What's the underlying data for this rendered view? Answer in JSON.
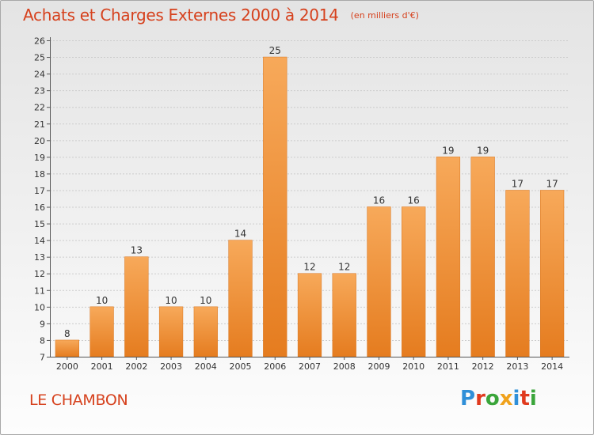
{
  "title": "Achats et Charges Externes 2000 à 2014",
  "unit_note": "(en milliers d'€)",
  "location": "LE CHAMBON",
  "logo": {
    "text": "Proxiti",
    "letter_colors": [
      "#2f8fd8",
      "#e03a1e",
      "#3aa53a",
      "#f0a21c",
      "#2f8fd8",
      "#e03a1e",
      "#3aa53a"
    ]
  },
  "colors": {
    "bar_light": "#f7a95a",
    "bar_dark": "#e57c1f",
    "axis": "#555555",
    "grid": "#cccccc",
    "title": "#d6411d"
  },
  "chart_data": {
    "type": "bar",
    "title": "Achats et Charges Externes 2000 à 2014",
    "subtitle": "(en milliers d'€)",
    "xlabel": "",
    "ylabel": "",
    "categories": [
      "2000",
      "2001",
      "2002",
      "2003",
      "2004",
      "2005",
      "2006",
      "2007",
      "2008",
      "2009",
      "2010",
      "2011",
      "2012",
      "2013",
      "2014"
    ],
    "values": [
      8,
      10,
      13,
      10,
      10,
      14,
      25,
      12,
      12,
      16,
      16,
      19,
      19,
      17,
      17
    ],
    "ylim": [
      7,
      26
    ],
    "yticks": [
      7,
      8,
      9,
      10,
      11,
      12,
      13,
      14,
      15,
      16,
      17,
      18,
      19,
      20,
      21,
      22,
      23,
      24,
      25,
      26
    ],
    "grid": true,
    "data_labels": true
  }
}
